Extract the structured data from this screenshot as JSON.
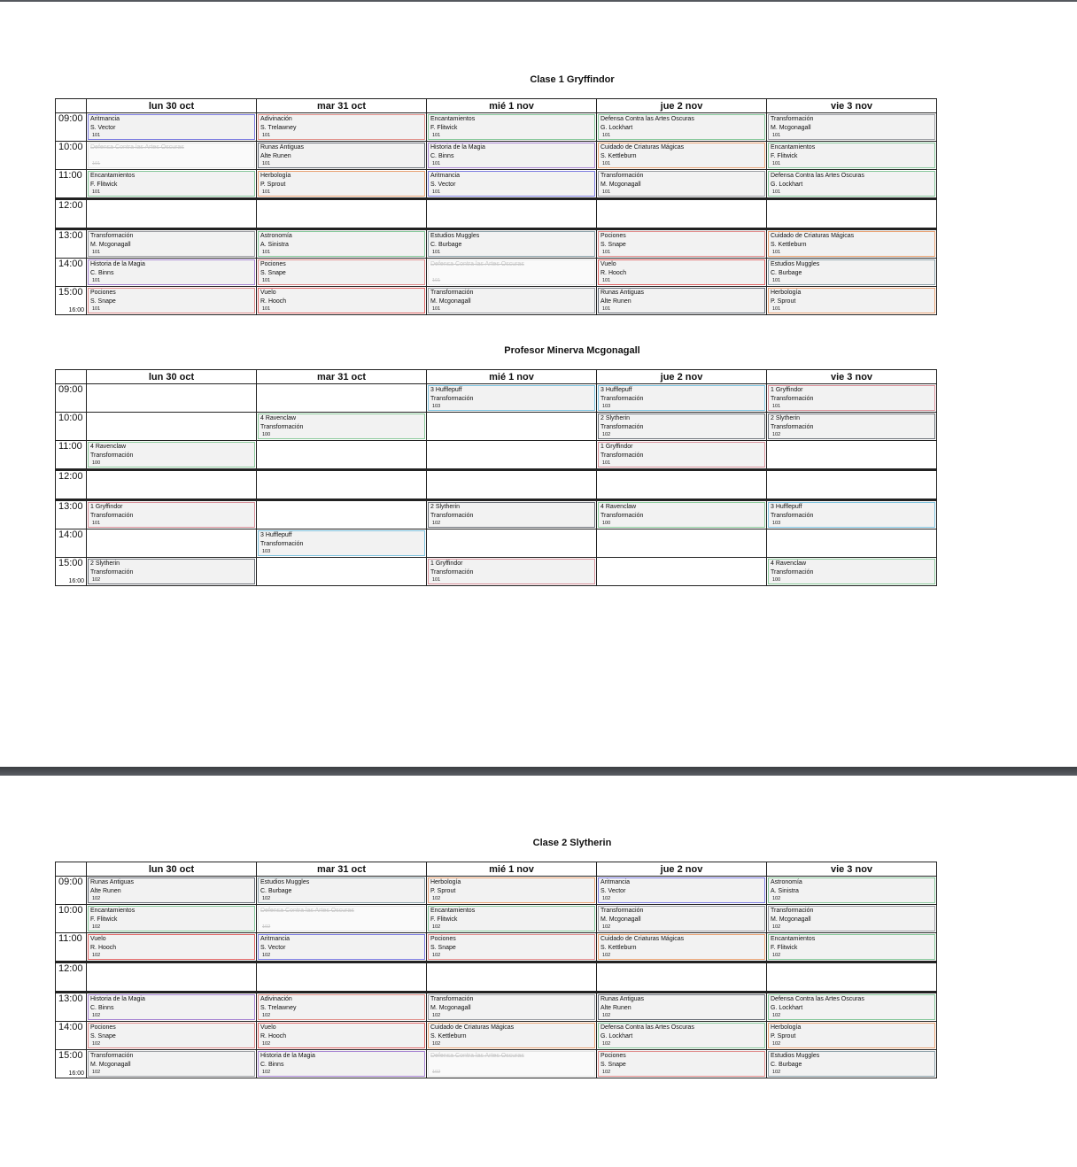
{
  "colors": {
    "aritmancia": "#7b7be0",
    "adivinacion": "#e0908a",
    "encantamientos": "#86c79a",
    "dcao": "#86c79a",
    "runas": "#6a6f78",
    "transformacion": "#9c9ea3",
    "herbologia": "#e8a273",
    "cuidado": "#e8a273",
    "historia": "#a784d2",
    "pociones": "#e08c8c",
    "vuelo": "#e06666",
    "astronomia": "#86c79a",
    "muggles": "#8ea2aa",
    "hufflepuff": "#7ec3df",
    "ravenclaw": "#8ccb9c",
    "gryffindor": "#d8909a",
    "slytherin": "#6f747b"
  },
  "tables": [
    {
      "title": "Clase 1 Gryffindor",
      "days": [
        "lun 30 oct",
        "mar 31 oct",
        "mié 1 nov",
        "jue 2 nov",
        "vie 3 nov"
      ],
      "rows": [
        {
          "time": "09:00",
          "cells": [
            {
              "l1": "Aritmancia",
              "l2": "S. Vector",
              "room": "101",
              "c": "aritmancia"
            },
            {
              "l1": "Adivinación",
              "l2": "S. Trelawney",
              "room": "101",
              "c": "adivinacion"
            },
            {
              "l1": "Encantamientos",
              "l2": "F. Flitwick",
              "room": "101",
              "c": "encantamientos"
            },
            {
              "l1": "Defensa Contra las Artes Oscuras",
              "l2": "G. Lockhart",
              "room": "101",
              "c": "dcao"
            },
            {
              "l1": "Transformación",
              "l2": "M. Mcgonagall",
              "room": "101",
              "c": "transformacion"
            }
          ]
        },
        {
          "time": "10:00",
          "cells": [
            {
              "l1": "Defensa Contra las Artes Oscuras",
              "l2": "",
              "room": "101",
              "c": "dcao",
              "cancelled": true
            },
            {
              "l1": "Runas Antiguas",
              "l2": "Alte Runen",
              "room": "101",
              "c": "runas"
            },
            {
              "l1": "Historia de la Magia",
              "l2": "C. Binns",
              "room": "101",
              "c": "historia"
            },
            {
              "l1": "Cuidado de Criaturas Mágicas",
              "l2": "S. Kettleburn",
              "room": "101",
              "c": "cuidado"
            },
            {
              "l1": "Encantamientos",
              "l2": "F. Flitwick",
              "room": "101",
              "c": "encantamientos"
            }
          ]
        },
        {
          "time": "11:00",
          "cells": [
            {
              "l1": "Encantamientos",
              "l2": "F. Flitwick",
              "room": "101",
              "c": "encantamientos"
            },
            {
              "l1": "Herbología",
              "l2": "P. Sprout",
              "room": "101",
              "c": "herbologia"
            },
            {
              "l1": "Aritmancia",
              "l2": "S. Vector",
              "room": "101",
              "c": "aritmancia"
            },
            {
              "l1": "Transformación",
              "l2": "M. Mcgonagall",
              "room": "101",
              "c": "transformacion"
            },
            {
              "l1": "Defensa Contra las Artes Oscuras",
              "l2": "G. Lockhart",
              "room": "101",
              "c": "dcao"
            }
          ]
        },
        {
          "time": "12:00",
          "cells": [
            null,
            null,
            null,
            null,
            null
          ]
        },
        {
          "time": "13:00",
          "cells": [
            {
              "l1": "Transformación",
              "l2": "M. Mcgonagall",
              "room": "101",
              "c": "transformacion"
            },
            {
              "l1": "Astronomía",
              "l2": "A. Sinistra",
              "room": "101",
              "c": "astronomia"
            },
            {
              "l1": "Estudios Muggles",
              "l2": "C. Burbage",
              "room": "101",
              "c": "muggles"
            },
            {
              "l1": "Pociones",
              "l2": "S. Snape",
              "room": "101",
              "c": "pociones"
            },
            {
              "l1": "Cuidado de Criaturas Mágicas",
              "l2": "S. Kettleburn",
              "room": "101",
              "c": "cuidado"
            }
          ]
        },
        {
          "time": "14:00",
          "cells": [
            {
              "l1": "Historia de la Magia",
              "l2": "C. Binns",
              "room": "101",
              "c": "historia"
            },
            {
              "l1": "Pociones",
              "l2": "S. Snape",
              "room": "101",
              "c": "pociones"
            },
            {
              "l1": "Defensa Contra las Artes Oscuras",
              "l2": "",
              "room": "101",
              "c": "dcao",
              "cancelled": true
            },
            {
              "l1": "Vuelo",
              "l2": "R. Hooch",
              "room": "101",
              "c": "vuelo"
            },
            {
              "l1": "Estudios Muggles",
              "l2": "C. Burbage",
              "room": "101",
              "c": "muggles"
            }
          ]
        },
        {
          "time": "15:00",
          "end": "16:00",
          "cells": [
            {
              "l1": "Pociones",
              "l2": "S. Snape",
              "room": "101",
              "c": "pociones"
            },
            {
              "l1": "Vuelo",
              "l2": "R. Hooch",
              "room": "101",
              "c": "vuelo"
            },
            {
              "l1": "Transformación",
              "l2": "M. Mcgonagall",
              "room": "101",
              "c": "transformacion"
            },
            {
              "l1": "Runas Antiguas",
              "l2": "Alte Runen",
              "room": "101",
              "c": "runas"
            },
            {
              "l1": "Herbología",
              "l2": "P. Sprout",
              "room": "101",
              "c": "herbologia"
            }
          ]
        }
      ]
    },
    {
      "title": "Profesor Minerva Mcgonagall",
      "days": [
        "lun 30 oct",
        "mar 31 oct",
        "mié 1 nov",
        "jue 2 nov",
        "vie 3 nov"
      ],
      "rows": [
        {
          "time": "09:00",
          "cells": [
            null,
            null,
            {
              "l1": "3 Hufflepuff",
              "l2": "Transformación",
              "room": "103",
              "c": "hufflepuff"
            },
            {
              "l1": "3 Hufflepuff",
              "l2": "Transformación",
              "room": "103",
              "c": "hufflepuff"
            },
            {
              "l1": "1 Gryffindor",
              "l2": "Transformación",
              "room": "101",
              "c": "gryffindor"
            }
          ]
        },
        {
          "time": "10:00",
          "cells": [
            null,
            {
              "l1": "4 Ravenclaw",
              "l2": "Transformación",
              "room": "100",
              "c": "ravenclaw"
            },
            null,
            {
              "l1": "2 Slytherin",
              "l2": "Transformación",
              "room": "102",
              "c": "slytherin"
            },
            {
              "l1": "2 Slytherin",
              "l2": "Transformación",
              "room": "102",
              "c": "slytherin"
            }
          ]
        },
        {
          "time": "11:00",
          "cells": [
            {
              "l1": "4 Ravenclaw",
              "l2": "Transformación",
              "room": "100",
              "c": "ravenclaw"
            },
            null,
            null,
            {
              "l1": "1 Gryffindor",
              "l2": "Transformación",
              "room": "101",
              "c": "gryffindor"
            },
            null
          ]
        },
        {
          "time": "12:00",
          "cells": [
            null,
            null,
            null,
            null,
            null
          ]
        },
        {
          "time": "13:00",
          "cells": [
            {
              "l1": "1 Gryffindor",
              "l2": "Transformación",
              "room": "101",
              "c": "gryffindor"
            },
            null,
            {
              "l1": "2 Slytherin",
              "l2": "Transformación",
              "room": "102",
              "c": "slytherin"
            },
            {
              "l1": "4 Ravenclaw",
              "l2": "Transformación",
              "room": "100",
              "c": "ravenclaw"
            },
            {
              "l1": "3 Hufflepuff",
              "l2": "Transformación",
              "room": "103",
              "c": "hufflepuff"
            }
          ]
        },
        {
          "time": "14:00",
          "cells": [
            null,
            {
              "l1": "3 Hufflepuff",
              "l2": "Transformación",
              "room": "103",
              "c": "hufflepuff"
            },
            null,
            null,
            null
          ]
        },
        {
          "time": "15:00",
          "end": "16:00",
          "cells": [
            {
              "l1": "2 Slytherin",
              "l2": "Transformación",
              "room": "102",
              "c": "slytherin"
            },
            null,
            {
              "l1": "1 Gryffindor",
              "l2": "Transformación",
              "room": "101",
              "c": "gryffindor"
            },
            null,
            {
              "l1": "4 Ravenclaw",
              "l2": "Transformación",
              "room": "100",
              "c": "ravenclaw"
            }
          ]
        }
      ]
    },
    {
      "title": "Clase 2 Slytherin",
      "days": [
        "lun 30 oct",
        "mar 31 oct",
        "mié 1 nov",
        "jue 2 nov",
        "vie 3 nov"
      ],
      "rows": [
        {
          "time": "09:00",
          "cells": [
            {
              "l1": "Runas Antiguas",
              "l2": "Alte Runen",
              "room": "102",
              "c": "runas"
            },
            {
              "l1": "Estudios Muggles",
              "l2": "C. Burbage",
              "room": "102",
              "c": "muggles"
            },
            {
              "l1": "Herbología",
              "l2": "P. Sprout",
              "room": "102",
              "c": "herbologia"
            },
            {
              "l1": "Aritmancia",
              "l2": "S. Vector",
              "room": "102",
              "c": "aritmancia"
            },
            {
              "l1": "Astronomía",
              "l2": "A. Sinistra",
              "room": "102",
              "c": "astronomia"
            }
          ]
        },
        {
          "time": "10:00",
          "cells": [
            {
              "l1": "Encantamientos",
              "l2": "F. Flitwick",
              "room": "102",
              "c": "encantamientos"
            },
            {
              "l1": "Defensa Contra las Artes Oscuras",
              "l2": "",
              "room": "102",
              "c": "dcao",
              "cancelled": true
            },
            {
              "l1": "Encantamientos",
              "l2": "F. Flitwick",
              "room": "102",
              "c": "encantamientos"
            },
            {
              "l1": "Transformación",
              "l2": "M. Mcgonagall",
              "room": "102",
              "c": "transformacion"
            },
            {
              "l1": "Transformación",
              "l2": "M. Mcgonagall",
              "room": "102",
              "c": "transformacion"
            }
          ]
        },
        {
          "time": "11:00",
          "cells": [
            {
              "l1": "Vuelo",
              "l2": "R. Hooch",
              "room": "102",
              "c": "vuelo"
            },
            {
              "l1": "Aritmancia",
              "l2": "S. Vector",
              "room": "102",
              "c": "aritmancia"
            },
            {
              "l1": "Pociones",
              "l2": "S. Snape",
              "room": "102",
              "c": "pociones"
            },
            {
              "l1": "Cuidado de Criaturas Mágicas",
              "l2": "S. Kettleburn",
              "room": "102",
              "c": "cuidado"
            },
            {
              "l1": "Encantamientos",
              "l2": "F. Flitwick",
              "room": "102",
              "c": "encantamientos"
            }
          ]
        },
        {
          "time": "12:00",
          "cells": [
            null,
            null,
            null,
            null,
            null
          ]
        },
        {
          "time": "13:00",
          "cells": [
            {
              "l1": "Historia de la Magia",
              "l2": "C. Binns",
              "room": "102",
              "c": "historia"
            },
            {
              "l1": "Adivinación",
              "l2": "S. Trelawney",
              "room": "102",
              "c": "adivinacion"
            },
            {
              "l1": "Transformación",
              "l2": "M. Mcgonagall",
              "room": "102",
              "c": "transformacion"
            },
            {
              "l1": "Runas Antiguas",
              "l2": "Alte Runen",
              "room": "102",
              "c": "runas"
            },
            {
              "l1": "Defensa Contra las Artes Oscuras",
              "l2": "G. Lockhart",
              "room": "102",
              "c": "dcao"
            }
          ]
        },
        {
          "time": "14:00",
          "cells": [
            {
              "l1": "Pociones",
              "l2": "S. Snape",
              "room": "102",
              "c": "pociones"
            },
            {
              "l1": "Vuelo",
              "l2": "R. Hooch",
              "room": "102",
              "c": "vuelo"
            },
            {
              "l1": "Cuidado de Criaturas Mágicas",
              "l2": "S. Kettleburn",
              "room": "102",
              "c": "cuidado"
            },
            {
              "l1": "Defensa Contra las Artes Oscuras",
              "l2": "G. Lockhart",
              "room": "102",
              "c": "dcao"
            },
            {
              "l1": "Herbología",
              "l2": "P. Sprout",
              "room": "102",
              "c": "herbologia"
            }
          ]
        },
        {
          "time": "15:00",
          "end": "16:00",
          "cells": [
            {
              "l1": "Transformación",
              "l2": "M. Mcgonagall",
              "room": "102",
              "c": "transformacion"
            },
            {
              "l1": "Historia de la Magia",
              "l2": "C. Binns",
              "room": "102",
              "c": "historia"
            },
            {
              "l1": "Defensa Contra las Artes Oscuras",
              "l2": "",
              "room": "102",
              "c": "dcao",
              "cancelled": true
            },
            {
              "l1": "Pociones",
              "l2": "S. Snape",
              "room": "102",
              "c": "pociones"
            },
            {
              "l1": "Estudios Muggles",
              "l2": "C. Burbage",
              "room": "102",
              "c": "muggles"
            }
          ]
        }
      ]
    }
  ]
}
